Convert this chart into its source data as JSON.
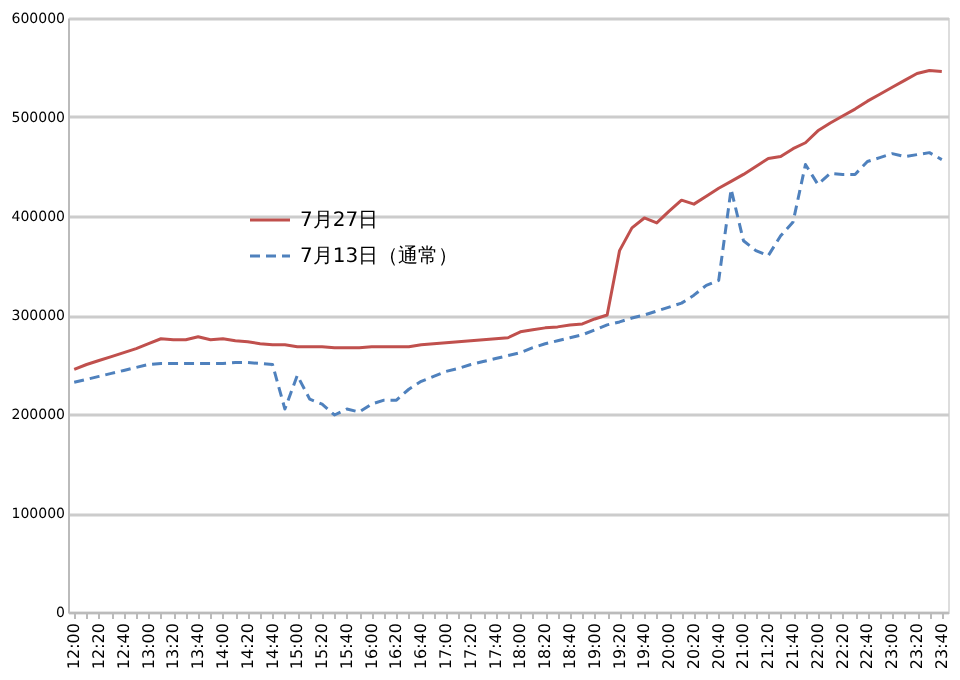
{
  "chart_data": {
    "type": "line",
    "categories": [
      "12:00",
      null,
      "12:20",
      null,
      "12:40",
      null,
      "13:00",
      null,
      "13:20",
      null,
      "13:40",
      null,
      "14:00",
      null,
      "14:20",
      null,
      "14:40",
      null,
      "15:00",
      null,
      "15:20",
      null,
      "15:40",
      null,
      "16:00",
      null,
      "16:20",
      null,
      "16:40",
      null,
      "17:00",
      null,
      "17:20",
      null,
      "17:40",
      null,
      "18:00",
      null,
      "18:20",
      null,
      "18:40",
      null,
      "19:00",
      null,
      "19:20",
      null,
      "19:40",
      null,
      "20:00",
      null,
      "20:20",
      null,
      "20:40",
      null,
      "21:00",
      null,
      "21:20",
      null,
      "21:40",
      null,
      "22:00",
      null,
      "22:20",
      null,
      "22:40",
      null,
      "23:00",
      null,
      "23:20",
      null,
      "23:40"
    ],
    "series": [
      {
        "name": "7月27日",
        "color": "#c0504d",
        "line_style": "solid",
        "values": [
          245000,
          250000,
          254000,
          258000,
          262000,
          266000,
          271000,
          276000,
          275000,
          275000,
          278000,
          275000,
          276000,
          274000,
          273000,
          271000,
          270000,
          270000,
          268000,
          268000,
          268000,
          267000,
          267000,
          267000,
          268000,
          268000,
          268000,
          268000,
          270000,
          271000,
          272000,
          273000,
          274000,
          275000,
          276000,
          277000,
          283000,
          285000,
          287000,
          288000,
          290000,
          291000,
          296000,
          300000,
          365000,
          388000,
          398000,
          393000,
          405000,
          416000,
          412000,
          420000,
          428000,
          435000,
          442000,
          450000,
          458000,
          460000,
          468000,
          474000,
          486000,
          494000,
          501000,
          508000,
          516000,
          523000,
          530000,
          537000,
          544000,
          547000,
          546000
        ]
      },
      {
        "name": "7月13日（通常）",
        "color": "#4f81bd",
        "line_style": "dashed",
        "values": [
          232000,
          235000,
          238000,
          241000,
          244000,
          247000,
          250000,
          251000,
          251000,
          251000,
          251000,
          251000,
          251000,
          252000,
          252000,
          251000,
          250000,
          205000,
          239000,
          215000,
          210000,
          199000,
          205000,
          202000,
          210000,
          214000,
          214000,
          225000,
          233000,
          238000,
          243000,
          246000,
          250000,
          253000,
          256000,
          259000,
          262000,
          267000,
          271000,
          274000,
          277000,
          280000,
          285000,
          290000,
          293000,
          297000,
          300000,
          304000,
          308000,
          312000,
          320000,
          330000,
          335000,
          427000,
          375000,
          365000,
          360000,
          380000,
          394000,
          452000,
          432000,
          443000,
          442000,
          442000,
          455000,
          459000,
          463000,
          460000,
          462000,
          464000,
          457000
        ]
      }
    ],
    "ylim": [
      0,
      600000
    ],
    "yticks": [
      0,
      100000,
      200000,
      300000,
      400000,
      500000,
      600000
    ],
    "grid": "y",
    "legend": "top left"
  }
}
